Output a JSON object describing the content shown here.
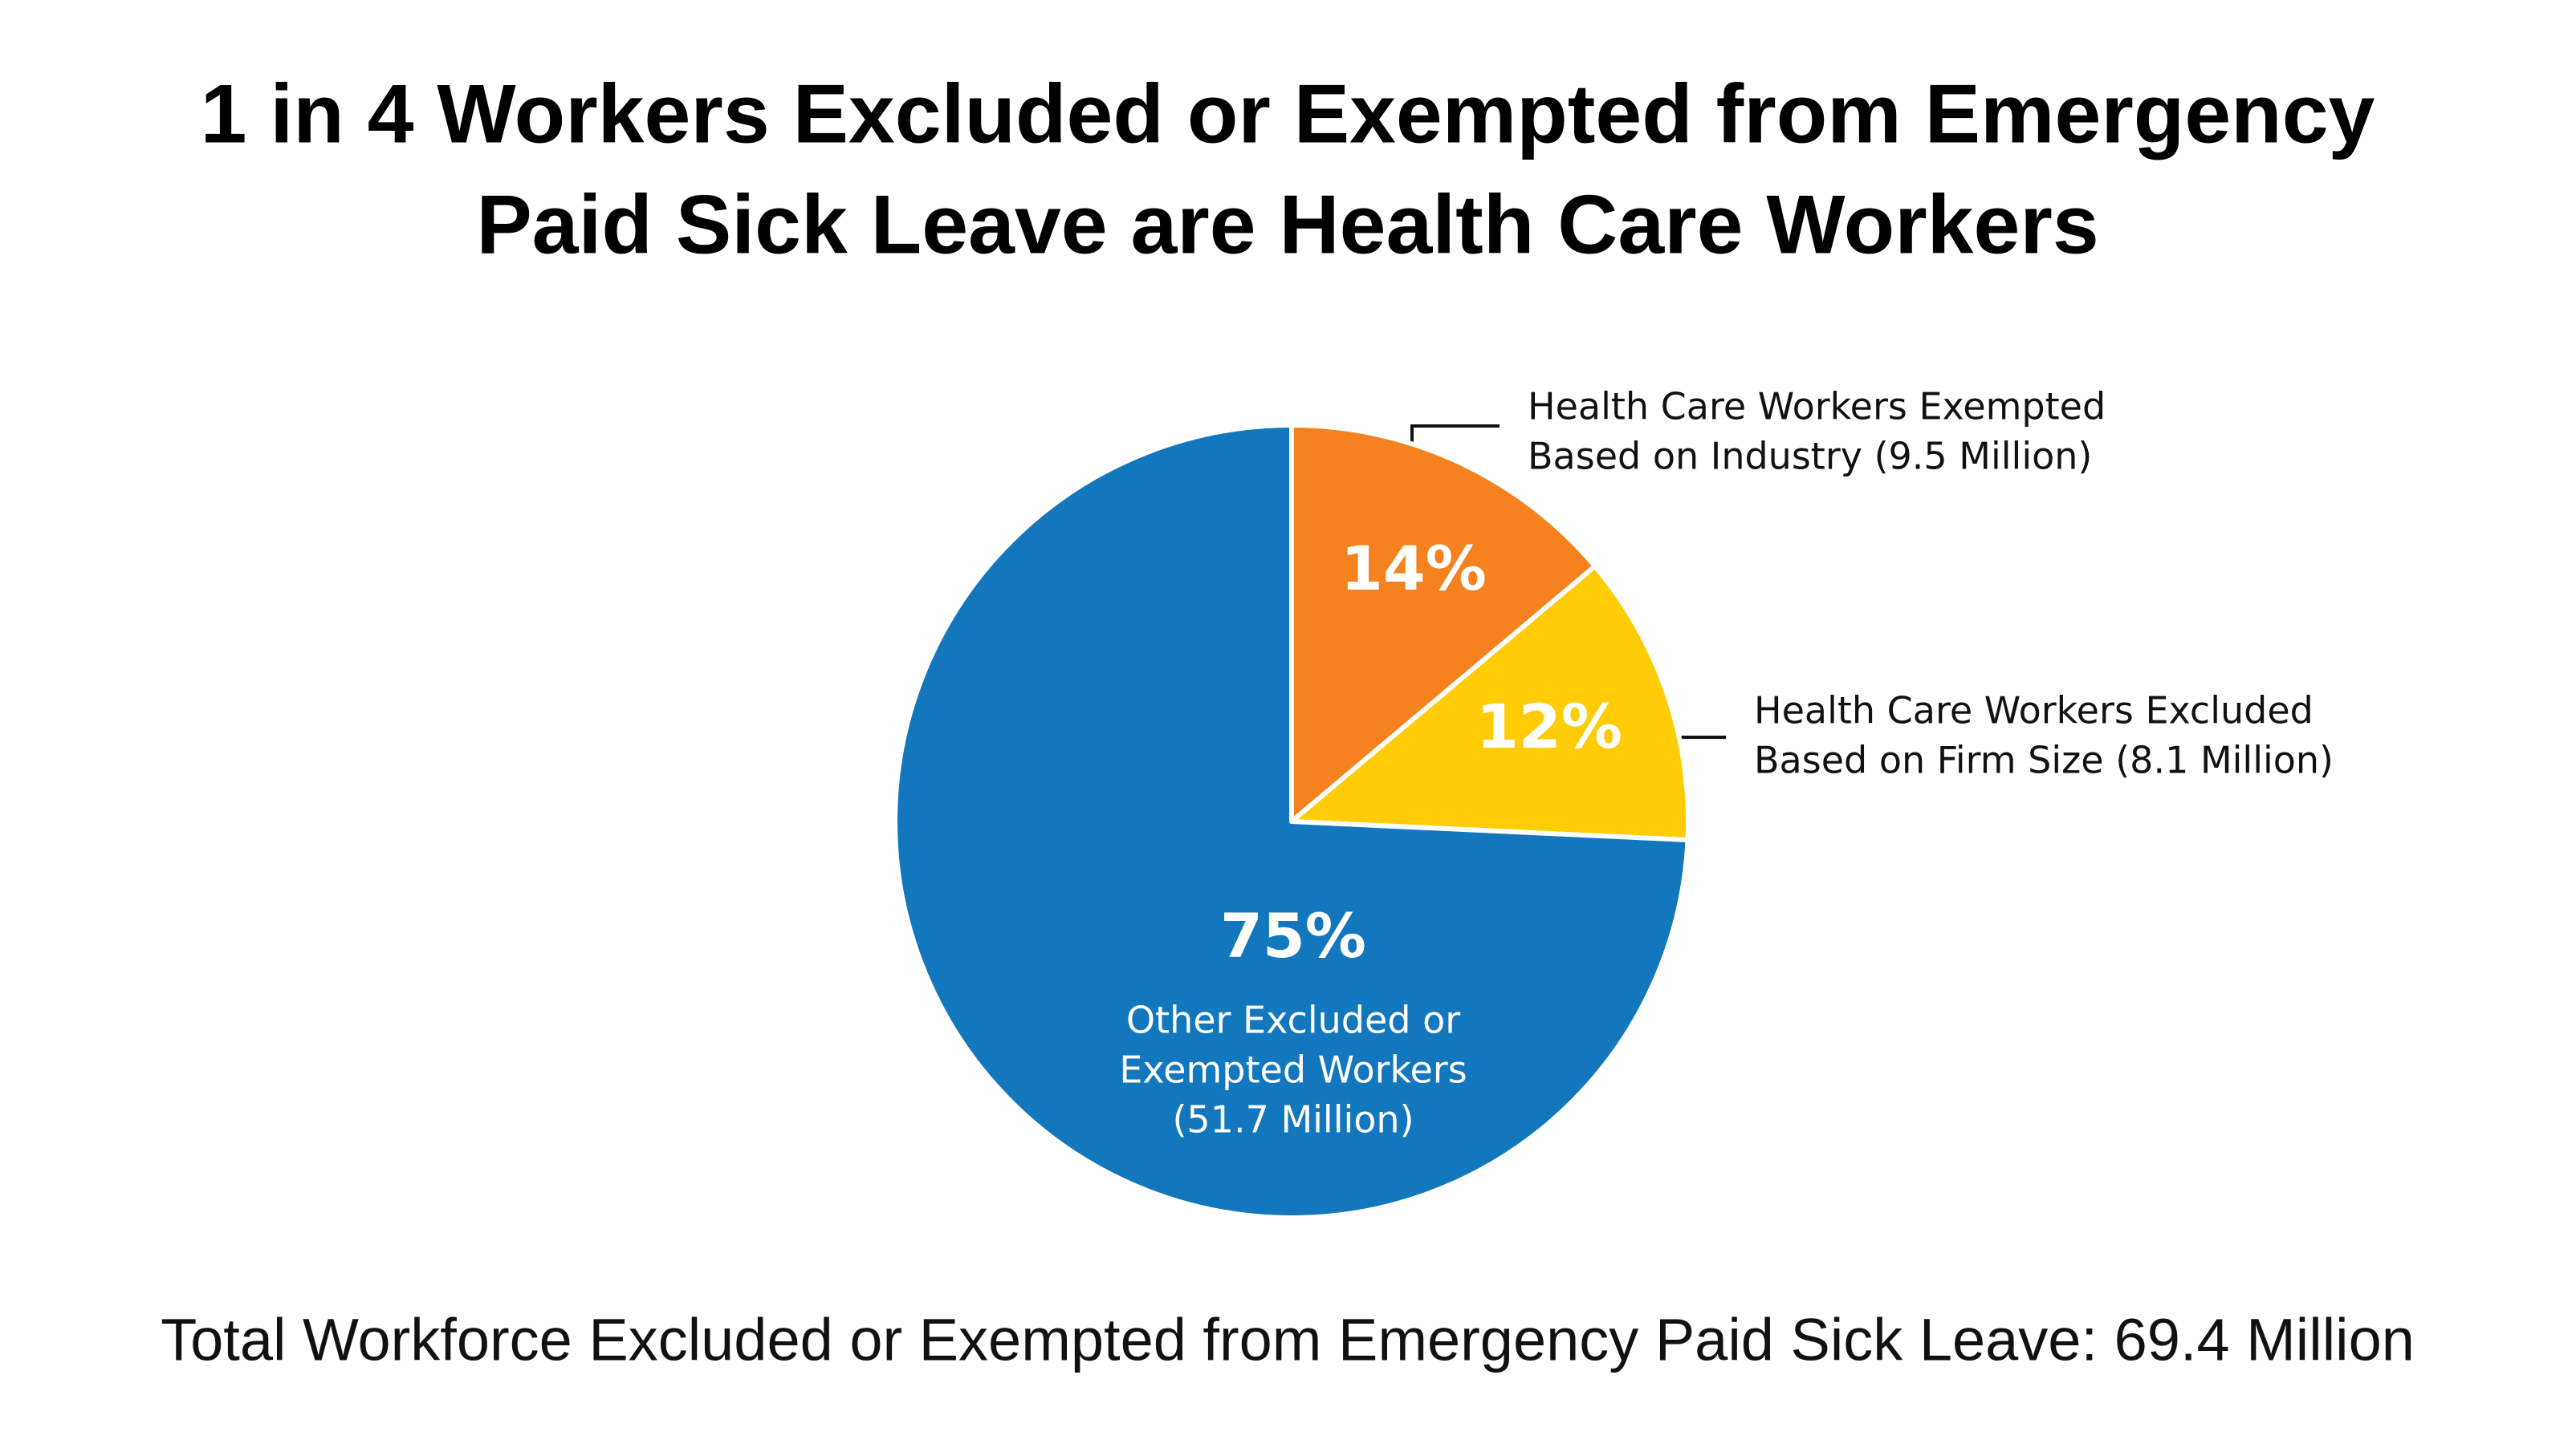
{
  "chart_data": {
    "type": "pie",
    "title": [
      "1 in 4 Workers Excluded or Exempted from Emergency",
      "Paid Sick Leave are Health Care Workers"
    ],
    "categories": [
      [
        "Health Care Workers Exempted",
        "Based on Industry (9.5 Million)"
      ],
      [
        "Health Care Workers Excluded",
        "Based on Firm Size (8.1 Million)"
      ],
      [
        "Other Excluded or",
        "Exempted Workers",
        "(51.7 Million)"
      ]
    ],
    "values": [
      14,
      12,
      75
    ],
    "value_labels": [
      "14%",
      "12%",
      "75%"
    ],
    "colors": [
      "#f5821f",
      "#ffcc05",
      "#1377bd"
    ],
    "footnote": "Total Workforce Excluded or Exempted from Emergency Paid Sick Leave: 69.4 Million"
  }
}
